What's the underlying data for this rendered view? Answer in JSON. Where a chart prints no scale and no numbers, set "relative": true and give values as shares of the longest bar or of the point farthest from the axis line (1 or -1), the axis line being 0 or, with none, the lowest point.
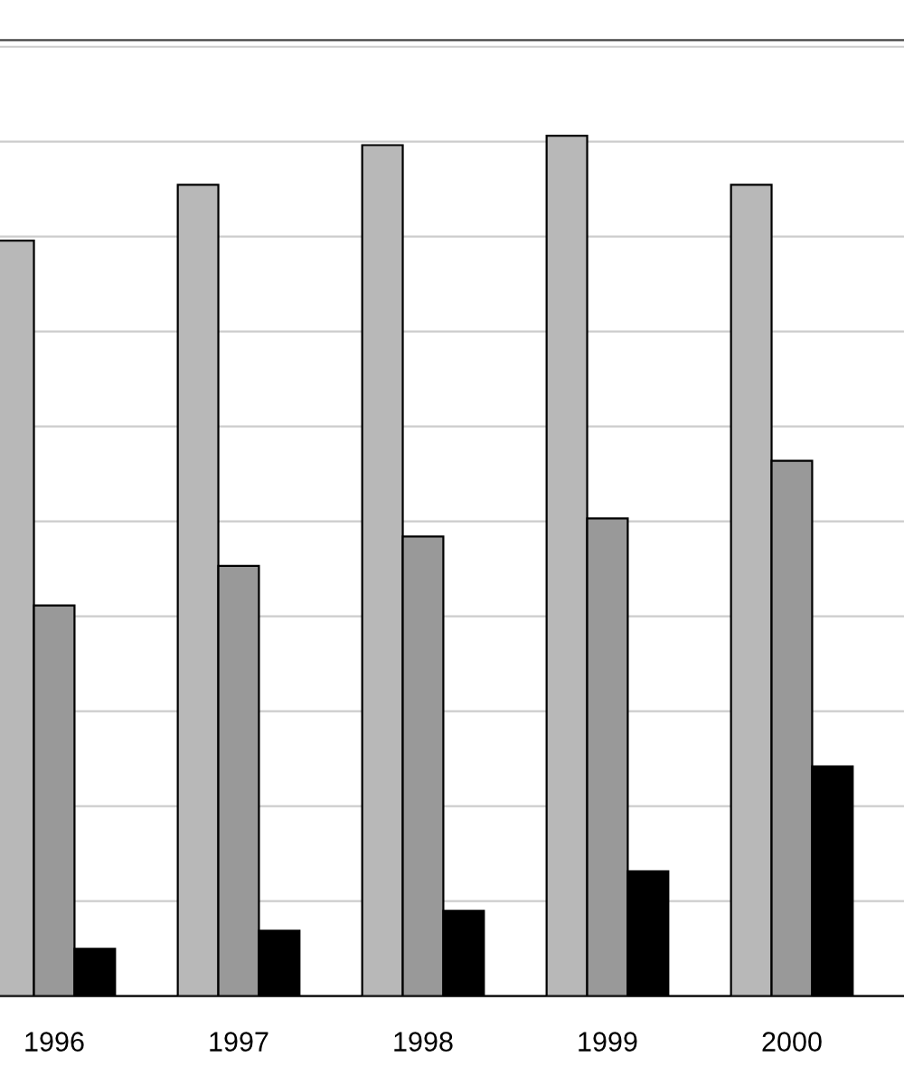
{
  "chart_data": {
    "type": "bar",
    "relative": true,
    "grid": "y",
    "categories": [
      "1996",
      "1997",
      "1998",
      "1999",
      "2000"
    ],
    "series": [
      {
        "color": "#b8b8b8",
        "values": [
          0.878,
          0.943,
          0.989,
          1,
          0.943
        ]
      },
      {
        "color": "#999999",
        "values": [
          0.454,
          0.5,
          0.534,
          0.555,
          0.622
        ]
      },
      {
        "color": "#000000",
        "values": [
          0.055,
          0.076,
          0.099,
          0.145,
          0.267
        ]
      }
    ]
  }
}
